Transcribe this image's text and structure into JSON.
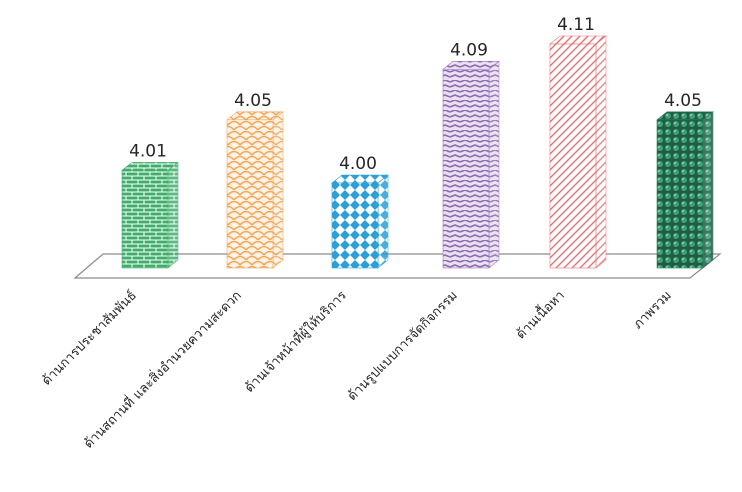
{
  "chart_data": {
    "type": "bar",
    "style": "3d-column",
    "categories": [
      "ด้านการประชาสัมพันธ์",
      "ด้านสถานที่ และสิ่งอำนวยความสะดวก",
      "ด้านเจ้าหน้าที่ผู้ให้บริการ",
      "ด้านรูปแบบการจัดกิจกรรม",
      "ด้านเนื้อหา",
      "ภาพรวม"
    ],
    "values": [
      4.01,
      4.05,
      4.0,
      4.09,
      4.11,
      4.05
    ],
    "data_labels": [
      "4.01",
      "4.05",
      "4.00",
      "4.09",
      "4.11",
      "4.05"
    ],
    "title": "",
    "xlabel": "",
    "ylabel": "",
    "ylim": [
      3.9,
      4.12
    ],
    "grid": false,
    "legend": "none",
    "bar_colors": [
      "#3fae6a",
      "#f2a65a",
      "#2a9fd8",
      "#9b7bb8",
      "#e57373",
      "#2e7d5b"
    ],
    "patterns": [
      "brick",
      "scale",
      "diamond",
      "weave",
      "diagonal",
      "sphere"
    ]
  }
}
